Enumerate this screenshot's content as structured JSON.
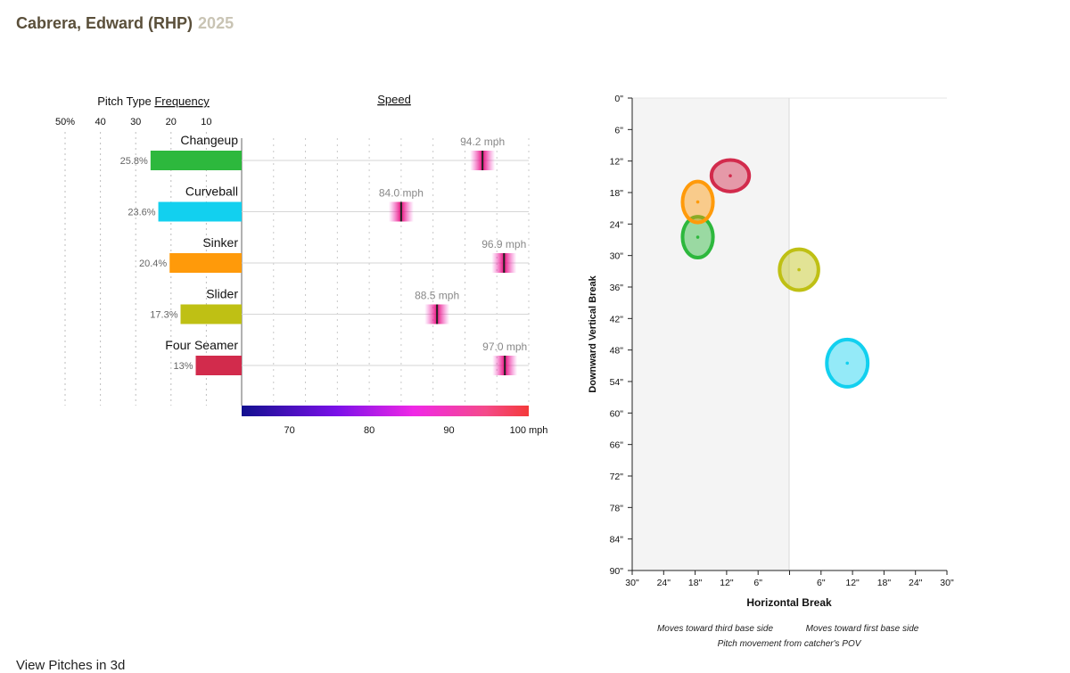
{
  "header": {
    "player": "Cabrera, Edward (RHP)",
    "year": "2025"
  },
  "left_panel": {
    "freq_label_prefix": "Pitch Type ",
    "freq_label_link": "Frequency",
    "speed_label": "Speed"
  },
  "movement_panel": {
    "ylabel": "Downward Vertical Break",
    "xlabel": "Horizontal Break",
    "note_third": "Moves toward third base side",
    "note_first": "Moves toward first base side",
    "note_pov": "Pitch movement from catcher's POV"
  },
  "footer": {
    "view_3d": "View Pitches in 3d"
  },
  "chart_data": [
    {
      "type": "bar",
      "title": "Pitch Type Frequency",
      "categories": [
        "Changeup",
        "Curveball",
        "Sinker",
        "Slider",
        "Four Seamer"
      ],
      "values": [
        25.8,
        23.6,
        20.4,
        17.3,
        13
      ],
      "value_labels": [
        "25.8%",
        "23.6%",
        "20.4%",
        "17.3%",
        "13%"
      ],
      "colors": [
        "#2db83d",
        "#12d0ef",
        "#ff9a0a",
        "#bfc014",
        "#d22b4c"
      ],
      "xlim": [
        0,
        50
      ],
      "tick_labels": [
        "50%",
        "40",
        "30",
        "20",
        "10"
      ]
    },
    {
      "type": "scatter",
      "title": "Speed",
      "categories": [
        "Changeup",
        "Curveball",
        "Sinker",
        "Slider",
        "Four Seamer"
      ],
      "values": [
        94.2,
        84.0,
        96.9,
        88.5,
        97.0
      ],
      "value_labels": [
        "94.2 mph",
        "84.0 mph",
        "96.9 mph",
        "88.5 mph",
        "97.0 mph"
      ],
      "xlim": [
        64,
        100
      ],
      "tick_values": [
        70,
        80,
        90,
        100
      ],
      "tick_labels": [
        "70",
        "80",
        "90",
        "100 mph"
      ]
    },
    {
      "type": "scatter",
      "xlabel": "Horizontal Break",
      "ylabel": "Downward Vertical Break",
      "xlim": [
        -30,
        30
      ],
      "ylim": [
        0,
        90
      ],
      "x_tick_values": [
        -30,
        -24,
        -18,
        -12,
        -6,
        0,
        6,
        12,
        18,
        24,
        30
      ],
      "x_tick_labels": [
        "30\"",
        "24\"",
        "18\"",
        "12\"",
        "6\"",
        "",
        "6\"",
        "12\"",
        "18\"",
        "24\"",
        "30\""
      ],
      "y_tick_values": [
        0,
        6,
        12,
        18,
        24,
        30,
        36,
        42,
        48,
        54,
        60,
        66,
        72,
        78,
        84,
        90
      ],
      "y_tick_labels": [
        "0\"",
        "6\"",
        "12\"",
        "18\"",
        "24\"",
        "30\"",
        "36\"",
        "42\"",
        "48\"",
        "54\"",
        "60\"",
        "66\"",
        "72\"",
        "78\"",
        "84\"",
        "90\""
      ],
      "series": [
        {
          "name": "Changeup",
          "x": -17.5,
          "y": 26.5,
          "color": "#2db83d",
          "spread_x": 2.9,
          "spread_y": 3.9
        },
        {
          "name": "Curveball",
          "x": 11,
          "y": 50.5,
          "color": "#12d0ef",
          "spread_x": 3.9,
          "spread_y": 4.5
        },
        {
          "name": "Sinker",
          "x": -17.5,
          "y": 19.8,
          "color": "#ff9a0a",
          "spread_x": 2.9,
          "spread_y": 3.9
        },
        {
          "name": "Slider",
          "x": 1.8,
          "y": 32.7,
          "color": "#bfc014",
          "spread_x": 3.7,
          "spread_y": 3.9
        },
        {
          "name": "Four Seamer",
          "x": -11.3,
          "y": 14.8,
          "color": "#d22b4c",
          "spread_x": 3.6,
          "spread_y": 3.0
        }
      ]
    }
  ]
}
